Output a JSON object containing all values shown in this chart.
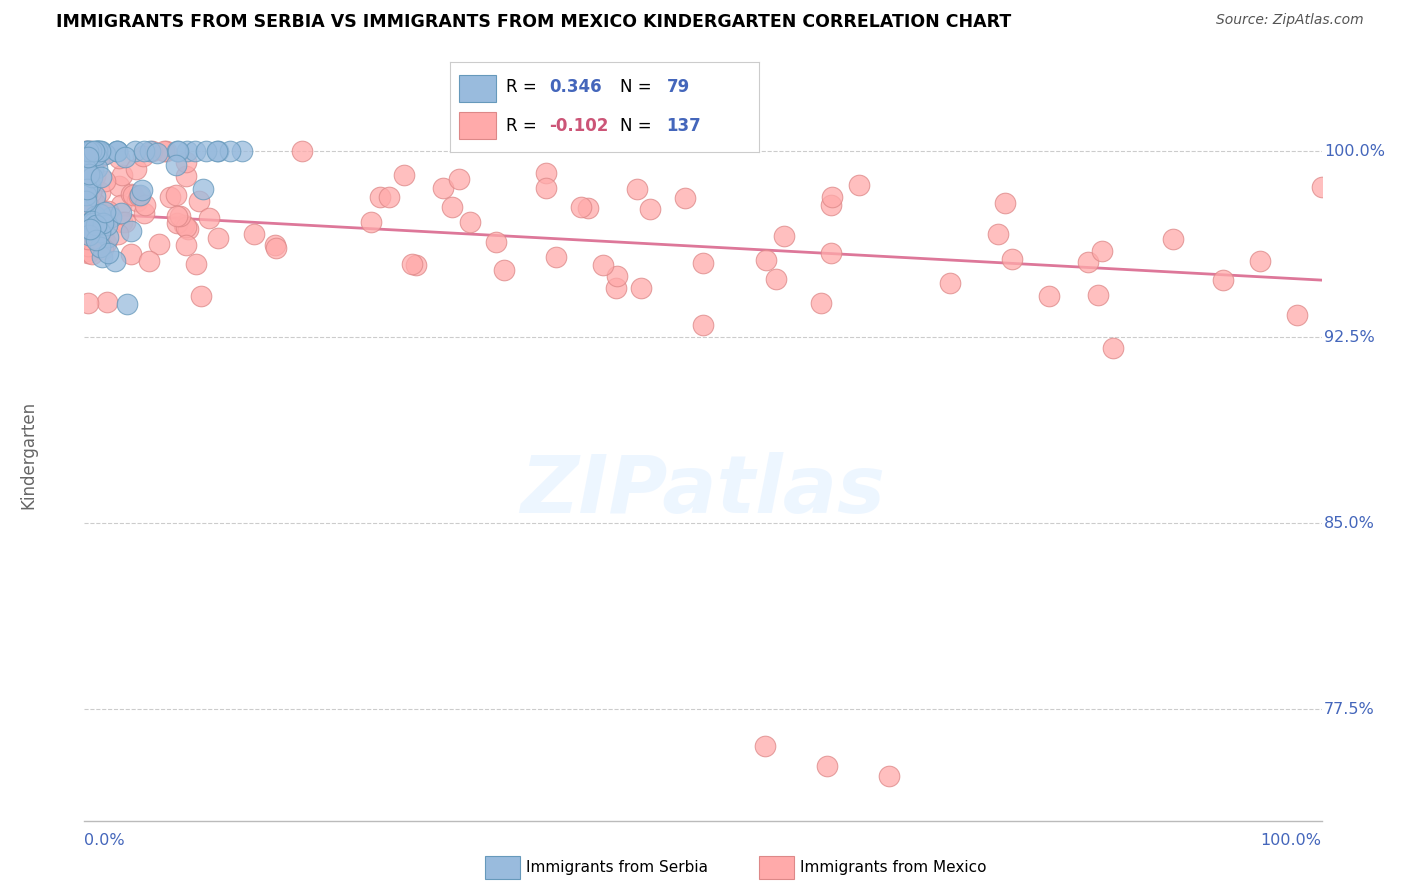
{
  "title": "IMMIGRANTS FROM SERBIA VS IMMIGRANTS FROM MEXICO KINDERGARTEN CORRELATION CHART",
  "source": "Source: ZipAtlas.com",
  "ylabel": "Kindergarten",
  "serbia_label": "Immigrants from Serbia",
  "mexico_label": "Immigrants from Mexico",
  "serbia_R": "0.346",
  "serbia_N": "79",
  "mexico_R": "-0.102",
  "mexico_N": "137",
  "serbia_color": "#99BBDD",
  "serbia_edge": "#6699BB",
  "mexico_color": "#FFAAAA",
  "mexico_edge": "#DD8888",
  "trend_mexico_color": "#DD7799",
  "blue_text_color": "#4466BB",
  "pink_text_color": "#CC5577",
  "xlim": [
    0.0,
    1.0
  ],
  "ylim": [
    0.73,
    1.025
  ],
  "yticks": [
    0.775,
    0.85,
    0.925,
    1.0
  ],
  "ytick_labels": [
    "77.5%",
    "85.0%",
    "92.5%",
    "100.0%"
  ],
  "watermark_text": "ZIPatlas",
  "watermark_color": "#DDEEFF"
}
